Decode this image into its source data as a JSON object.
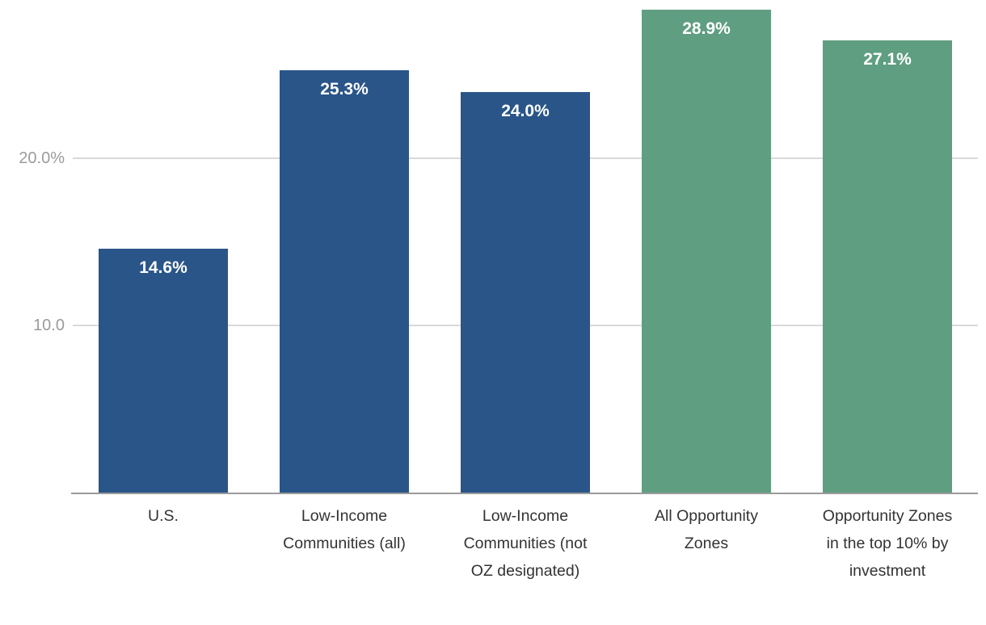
{
  "chart_data": {
    "type": "bar",
    "categories": [
      "U.S.",
      "Low-Income Communities (all)",
      "Low-Income Communities (not OZ designated)",
      "All Opportunity Zones",
      "Opportunity Zones in the top 10% by investment"
    ],
    "values": [
      14.6,
      25.3,
      24.0,
      28.9,
      27.1
    ],
    "labels": [
      "14.6%",
      "25.3%",
      "24.0%",
      "28.9%",
      "27.1%"
    ],
    "bar_colors": [
      "#2a5588",
      "#2a5588",
      "#2a5588",
      "#5f9e81",
      "#5f9e81"
    ],
    "title": "",
    "xlabel": "",
    "ylabel": "",
    "ylim": [
      0,
      29.5
    ],
    "yticks": [
      {
        "value": 10,
        "label": "10.0"
      },
      {
        "value": 20,
        "label": "20.0%"
      }
    ],
    "grid": true,
    "legend": false
  },
  "colors": {
    "bar_blue": "#2a5588",
    "bar_green": "#5f9e81",
    "gridline": "#d9d9d9",
    "axis_line": "#9a9a9a",
    "tick_text": "#9b9b9b",
    "category_text": "#333333",
    "value_label_text": "#ffffff",
    "background": "#ffffff"
  }
}
